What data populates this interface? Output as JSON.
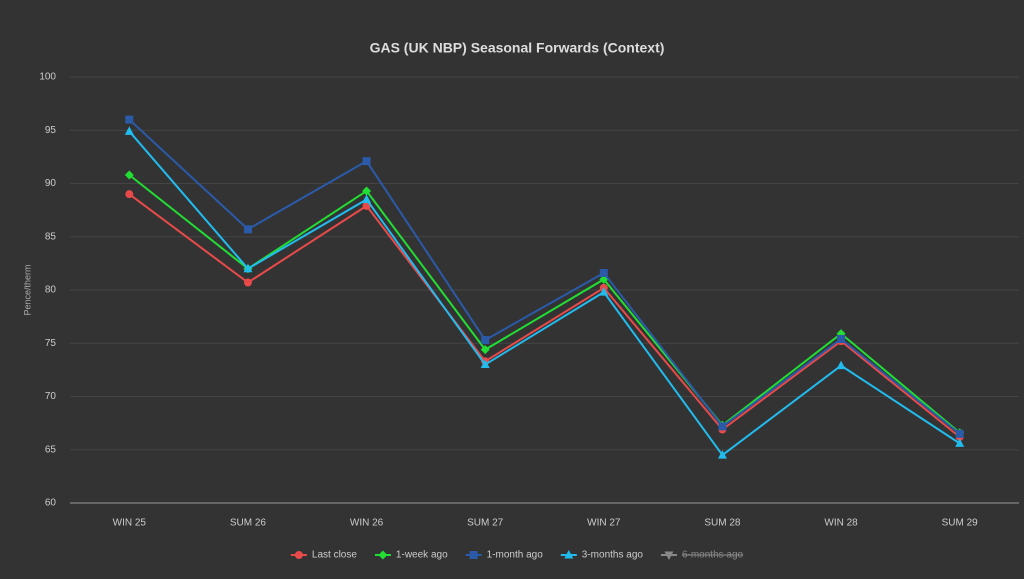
{
  "chart_data": {
    "type": "line",
    "title": "GAS (UK NBP) Seasonal Forwards (Context)",
    "y_label": "Pence/therm",
    "categories": [
      "WIN 25",
      "SUM 26",
      "WIN 26",
      "SUM 27",
      "WIN 27",
      "SUM 28",
      "WIN 28",
      "SUM 29"
    ],
    "series": [
      {
        "name": "Last close",
        "color": "#e84a4a",
        "marker": "circle",
        "values": [
          89.0,
          80.7,
          87.9,
          73.3,
          80.2,
          66.9,
          75.2,
          66.2
        ]
      },
      {
        "name": "1-week ago",
        "color": "#22dd33",
        "marker": "diamond",
        "values": [
          90.8,
          82.0,
          89.3,
          74.4,
          81.0,
          67.3,
          75.9,
          66.6
        ]
      },
      {
        "name": "1-month ago",
        "color": "#2a5aa8",
        "marker": "square",
        "values": [
          96.0,
          85.7,
          92.1,
          75.3,
          81.6,
          67.2,
          75.4,
          66.5
        ]
      },
      {
        "name": "3-months ago",
        "color": "#22bbee",
        "marker": "triangle",
        "values": [
          94.9,
          82.0,
          88.5,
          73.0,
          79.8,
          64.5,
          72.9,
          65.6
        ]
      },
      {
        "name": "6-months ago",
        "color": "#888888",
        "marker": "triangle-down",
        "hidden": true,
        "values": [
          null,
          null,
          null,
          null,
          null,
          null,
          null,
          null
        ]
      }
    ],
    "ylim": [
      60,
      100
    ],
    "yticks": [
      60,
      65,
      70,
      75,
      80,
      85,
      90,
      95,
      100
    ],
    "grid": true,
    "legend": "bottom"
  }
}
